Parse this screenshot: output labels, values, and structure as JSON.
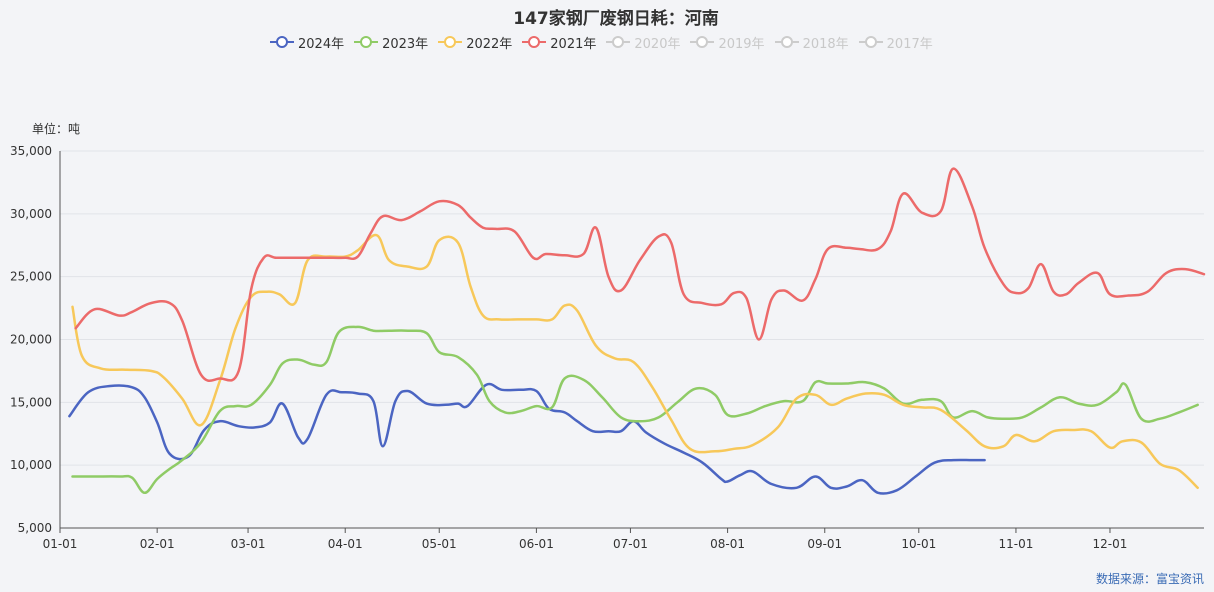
{
  "title": "147家钢厂废钢日耗：河南",
  "unit_label": "单位：吨",
  "source_note": "数据来源：富宝资讯",
  "legend": [
    {
      "name": "2024年",
      "color": "#4b65c2",
      "active": true
    },
    {
      "name": "2023年",
      "color": "#8fcb66",
      "active": true
    },
    {
      "name": "2022年",
      "color": "#f7c85a",
      "active": true
    },
    {
      "name": "2021年",
      "color": "#ec6a6a",
      "active": true
    },
    {
      "name": "2020年",
      "color": "#cccccc",
      "active": false
    },
    {
      "name": "2019年",
      "color": "#cccccc",
      "active": false
    },
    {
      "name": "2018年",
      "color": "#cccccc",
      "active": false
    },
    {
      "name": "2017年",
      "color": "#cccccc",
      "active": false
    }
  ],
  "chart_data": {
    "type": "line",
    "title": "147家钢厂废钢日耗：河南",
    "ylabel": "单位：吨",
    "xlabel": "",
    "ylim": [
      5000,
      35000
    ],
    "xlim": [
      1,
      366
    ],
    "y_ticks": [
      5000,
      10000,
      15000,
      20000,
      25000,
      30000,
      35000
    ],
    "y_tick_labels": [
      "5,000",
      "10,000",
      "15,000",
      "20,000",
      "25,000",
      "30,000",
      "35,000"
    ],
    "x_ticks": [
      1,
      32,
      61,
      92,
      122,
      153,
      183,
      214,
      245,
      275,
      306,
      336
    ],
    "x_tick_labels": [
      "01-01",
      "02-01",
      "03-01",
      "04-01",
      "05-01",
      "06-01",
      "07-01",
      "08-01",
      "09-01",
      "10-01",
      "11-01",
      "12-01"
    ],
    "grid": true,
    "legend_position": "top",
    "series": [
      {
        "name": "2024年",
        "color": "#4b65c2",
        "x": [
          4,
          10,
          17,
          24,
          28,
          32,
          36,
          42,
          47,
          52,
          58,
          63,
          68,
          72,
          77,
          80,
          86,
          91,
          96,
          101,
          104,
          108,
          112,
          118,
          124,
          128,
          131,
          137,
          142,
          148,
          153,
          157,
          162,
          166,
          171,
          176,
          180,
          184,
          188,
          194,
          200,
          206,
          212,
          214,
          218,
          222,
          228,
          236,
          242,
          247,
          252,
          257,
          262,
          268,
          274,
          280,
          286,
          292,
          296
        ],
        "y": [
          13900,
          15800,
          16300,
          16200,
          15400,
          13400,
          10900,
          10700,
          12800,
          13500,
          13100,
          13000,
          13400,
          14900,
          12200,
          12100,
          15600,
          15800,
          15700,
          15100,
          11500,
          15100,
          15900,
          14900,
          14800,
          14900,
          14700,
          16400,
          16000,
          16000,
          15900,
          14500,
          14200,
          13500,
          12700,
          12700,
          12700,
          13500,
          12600,
          11700,
          11000,
          10200,
          8900,
          8700,
          9200,
          9500,
          8500,
          8200,
          9100,
          8200,
          8300,
          8800,
          7800,
          8000,
          9100,
          10200,
          10400,
          10400,
          10400
        ]
      },
      {
        "name": "2023年",
        "color": "#8fcb66",
        "x": [
          5,
          12,
          20,
          24,
          28,
          32,
          36,
          40,
          46,
          52,
          57,
          62,
          68,
          72,
          77,
          82,
          86,
          90,
          96,
          101,
          106,
          112,
          118,
          122,
          128,
          134,
          138,
          143,
          148,
          153,
          158,
          162,
          168,
          174,
          180,
          186,
          192,
          198,
          204,
          210,
          214,
          220,
          226,
          232,
          238,
          242,
          246,
          252,
          258,
          264,
          270,
          276,
          282,
          286,
          292,
          297,
          302,
          308,
          314,
          320,
          326,
          332,
          338,
          341,
          346,
          352,
          358,
          364
        ],
        "y": [
          9100,
          9100,
          9100,
          9000,
          7800,
          8900,
          9700,
          10400,
          11800,
          14300,
          14700,
          14800,
          16400,
          18100,
          18400,
          18000,
          18200,
          20600,
          21000,
          20700,
          20700,
          20700,
          20500,
          19000,
          18600,
          17200,
          15100,
          14200,
          14300,
          14700,
          14600,
          16900,
          16800,
          15400,
          13800,
          13500,
          13800,
          15000,
          16100,
          15600,
          14000,
          14100,
          14700,
          15100,
          15100,
          16600,
          16500,
          16500,
          16600,
          16100,
          14900,
          15200,
          15100,
          13800,
          14300,
          13800,
          13700,
          13800,
          14600,
          15400,
          14900,
          14800,
          15800,
          16400,
          13700,
          13700,
          14200,
          14800
        ]
      },
      {
        "name": "2022年",
        "color": "#f7c85a",
        "x": [
          5,
          8,
          14,
          22,
          30,
          34,
          40,
          46,
          52,
          57,
          62,
          67,
          71,
          76,
          80,
          86,
          92,
          96,
          102,
          106,
          112,
          118,
          122,
          128,
          132,
          136,
          141,
          147,
          153,
          158,
          162,
          166,
          172,
          178,
          184,
          190,
          196,
          202,
          210,
          216,
          222,
          230,
          236,
          242,
          247,
          252,
          258,
          264,
          270,
          276,
          282,
          290,
          296,
          302,
          306,
          312,
          318,
          324,
          330,
          336,
          340,
          346,
          352,
          358,
          364
        ],
        "y": [
          22600,
          18700,
          17700,
          17600,
          17500,
          17000,
          15300,
          13200,
          16700,
          20900,
          23400,
          23800,
          23600,
          22900,
          26300,
          26600,
          26600,
          27100,
          28300,
          26300,
          25800,
          25800,
          27900,
          27700,
          24200,
          21900,
          21600,
          21600,
          21600,
          21600,
          22700,
          22300,
          19500,
          18500,
          18200,
          16200,
          13600,
          11300,
          11100,
          11300,
          11600,
          13000,
          15300,
          15600,
          14800,
          15300,
          15700,
          15600,
          14800,
          14600,
          14400,
          12800,
          11500,
          11500,
          12400,
          11900,
          12700,
          12800,
          12700,
          11400,
          11900,
          11800,
          10100,
          9600,
          8200
        ]
      },
      {
        "name": "2021年",
        "color": "#ec6a6a",
        "x": [
          6,
          12,
          20,
          24,
          30,
          36,
          40,
          46,
          52,
          58,
          62,
          66,
          70,
          76,
          82,
          88,
          92,
          96,
          100,
          104,
          110,
          116,
          122,
          128,
          132,
          136,
          140,
          146,
          152,
          156,
          162,
          168,
          172,
          176,
          180,
          186,
          192,
          196,
          200,
          206,
          212,
          216,
          220,
          224,
          228,
          232,
          238,
          242,
          246,
          252,
          256,
          262,
          266,
          270,
          276,
          282,
          286,
          292,
          296,
          302,
          306,
          310,
          314,
          318,
          322,
          326,
          332,
          336,
          342,
          348,
          354,
          360,
          366
        ],
        "y": [
          20900,
          22400,
          21900,
          22200,
          22900,
          22900,
          21500,
          17200,
          16900,
          17500,
          24000,
          26500,
          26500,
          26500,
          26500,
          26500,
          26500,
          26600,
          28400,
          29800,
          29500,
          30200,
          31000,
          30700,
          29700,
          28900,
          28800,
          28600,
          26500,
          26800,
          26700,
          26800,
          28900,
          25000,
          23900,
          26300,
          28200,
          27700,
          23600,
          22900,
          22800,
          23700,
          23300,
          20000,
          23200,
          23900,
          23100,
          24800,
          27200,
          27300,
          27200,
          27200,
          28600,
          31600,
          30100,
          30200,
          33600,
          30600,
          27300,
          24400,
          23700,
          24100,
          26000,
          23800,
          23600,
          24500,
          25300,
          23600,
          23500,
          23800,
          25300,
          25600,
          25200
        ]
      }
    ]
  }
}
